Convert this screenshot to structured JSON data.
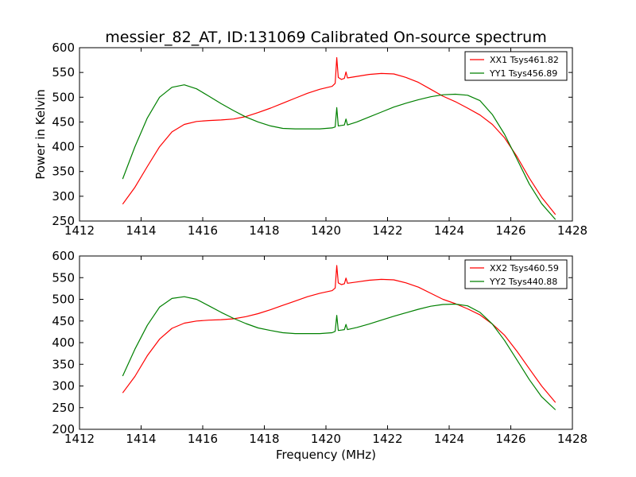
{
  "title": "messier_82_AT, ID:131069 Calibrated On-source spectrum",
  "xlabel": "Frequency (MHz)",
  "ylabel": "Power in Kelvin",
  "chart_data": [
    {
      "type": "line",
      "title": "messier_82_AT, ID:131069 Calibrated On-source spectrum",
      "xlabel": "",
      "ylabel": "Power in Kelvin",
      "xlim": [
        1412,
        1428
      ],
      "ylim": [
        250,
        600
      ],
      "xticks": [
        1412,
        1414,
        1416,
        1418,
        1420,
        1422,
        1424,
        1426,
        1428
      ],
      "yticks": [
        250,
        300,
        350,
        400,
        450,
        500,
        550,
        600
      ],
      "grid": false,
      "legend_position": "top-right",
      "series": [
        {
          "name": "XX1 Tsys461.82",
          "color": "#ff0000",
          "x": [
            1413.4,
            1413.8,
            1414.2,
            1414.6,
            1415.0,
            1415.4,
            1415.8,
            1416.2,
            1416.6,
            1417.0,
            1417.4,
            1417.8,
            1418.2,
            1418.6,
            1419.0,
            1419.4,
            1419.8,
            1420.2,
            1420.3,
            1420.35,
            1420.4,
            1420.5,
            1420.6,
            1420.65,
            1420.7,
            1421.0,
            1421.4,
            1421.8,
            1422.2,
            1422.6,
            1423.0,
            1423.4,
            1423.8,
            1424.2,
            1424.6,
            1425.0,
            1425.4,
            1425.8,
            1426.2,
            1426.6,
            1427.0,
            1427.45
          ],
          "y": [
            284,
            318,
            360,
            400,
            430,
            445,
            451,
            453,
            454,
            456,
            461,
            469,
            478,
            488,
            498,
            508,
            516,
            522,
            528,
            580,
            540,
            536,
            538,
            551,
            539,
            542,
            546,
            548,
            547,
            540,
            530,
            516,
            502,
            491,
            478,
            464,
            445,
            418,
            380,
            337,
            298,
            263
          ]
        },
        {
          "name": "YY1 Tsys456.89",
          "color": "#008000",
          "x": [
            1413.4,
            1413.8,
            1414.2,
            1414.6,
            1415.0,
            1415.4,
            1415.8,
            1416.2,
            1416.6,
            1417.0,
            1417.4,
            1417.8,
            1418.2,
            1418.6,
            1419.0,
            1419.4,
            1419.8,
            1420.2,
            1420.3,
            1420.35,
            1420.4,
            1420.5,
            1420.6,
            1420.65,
            1420.7,
            1421.0,
            1421.4,
            1421.8,
            1422.2,
            1422.6,
            1423.0,
            1423.4,
            1423.8,
            1424.2,
            1424.6,
            1425.0,
            1425.4,
            1425.8,
            1426.2,
            1426.6,
            1427.0,
            1427.45
          ],
          "y": [
            335,
            400,
            458,
            500,
            520,
            525,
            517,
            502,
            487,
            473,
            460,
            450,
            442,
            437,
            436,
            436,
            436,
            438,
            440,
            479,
            442,
            443,
            444,
            456,
            444,
            450,
            460,
            470,
            480,
            488,
            495,
            501,
            505,
            506,
            504,
            493,
            465,
            425,
            375,
            325,
            285,
            253
          ]
        }
      ]
    },
    {
      "type": "line",
      "title": "",
      "xlabel": "Frequency (MHz)",
      "ylabel": "",
      "xlim": [
        1412,
        1428
      ],
      "ylim": [
        200,
        600
      ],
      "xticks": [
        1412,
        1414,
        1416,
        1418,
        1420,
        1422,
        1424,
        1426,
        1428
      ],
      "yticks": [
        200,
        250,
        300,
        350,
        400,
        450,
        500,
        550,
        600
      ],
      "grid": false,
      "legend_position": "top-right",
      "series": [
        {
          "name": "XX2 Tsys460.59",
          "color": "#ff0000",
          "x": [
            1413.4,
            1413.8,
            1414.2,
            1414.6,
            1415.0,
            1415.4,
            1415.8,
            1416.2,
            1416.6,
            1417.0,
            1417.4,
            1417.8,
            1418.2,
            1418.6,
            1419.0,
            1419.4,
            1419.8,
            1420.2,
            1420.3,
            1420.35,
            1420.4,
            1420.5,
            1420.6,
            1420.65,
            1420.7,
            1421.0,
            1421.4,
            1421.8,
            1422.2,
            1422.6,
            1423.0,
            1423.4,
            1423.8,
            1424.2,
            1424.6,
            1425.0,
            1425.4,
            1425.8,
            1426.2,
            1426.6,
            1427.0,
            1427.45
          ],
          "y": [
            284,
            322,
            370,
            408,
            433,
            445,
            450,
            452,
            453,
            455,
            460,
            467,
            476,
            486,
            496,
            506,
            514,
            520,
            526,
            578,
            538,
            534,
            536,
            549,
            537,
            540,
            544,
            546,
            545,
            538,
            528,
            514,
            500,
            490,
            478,
            464,
            443,
            417,
            380,
            340,
            300,
            262
          ]
        },
        {
          "name": "YY2 Tsys440.88",
          "color": "#008000",
          "x": [
            1413.4,
            1413.8,
            1414.2,
            1414.6,
            1415.0,
            1415.4,
            1415.8,
            1416.2,
            1416.6,
            1417.0,
            1417.4,
            1417.8,
            1418.2,
            1418.6,
            1419.0,
            1419.4,
            1419.8,
            1420.2,
            1420.3,
            1420.35,
            1420.4,
            1420.5,
            1420.6,
            1420.65,
            1420.7,
            1421.0,
            1421.4,
            1421.8,
            1422.2,
            1422.6,
            1423.0,
            1423.4,
            1423.8,
            1424.2,
            1424.6,
            1425.0,
            1425.4,
            1425.8,
            1426.2,
            1426.6,
            1427.0,
            1427.45
          ],
          "y": [
            323,
            385,
            440,
            482,
            502,
            506,
            500,
            485,
            470,
            456,
            444,
            434,
            428,
            423,
            421,
            421,
            421,
            423,
            426,
            463,
            428,
            429,
            430,
            442,
            430,
            435,
            443,
            452,
            461,
            469,
            477,
            484,
            488,
            489,
            485,
            470,
            443,
            405,
            360,
            315,
            275,
            245
          ]
        }
      ]
    }
  ]
}
